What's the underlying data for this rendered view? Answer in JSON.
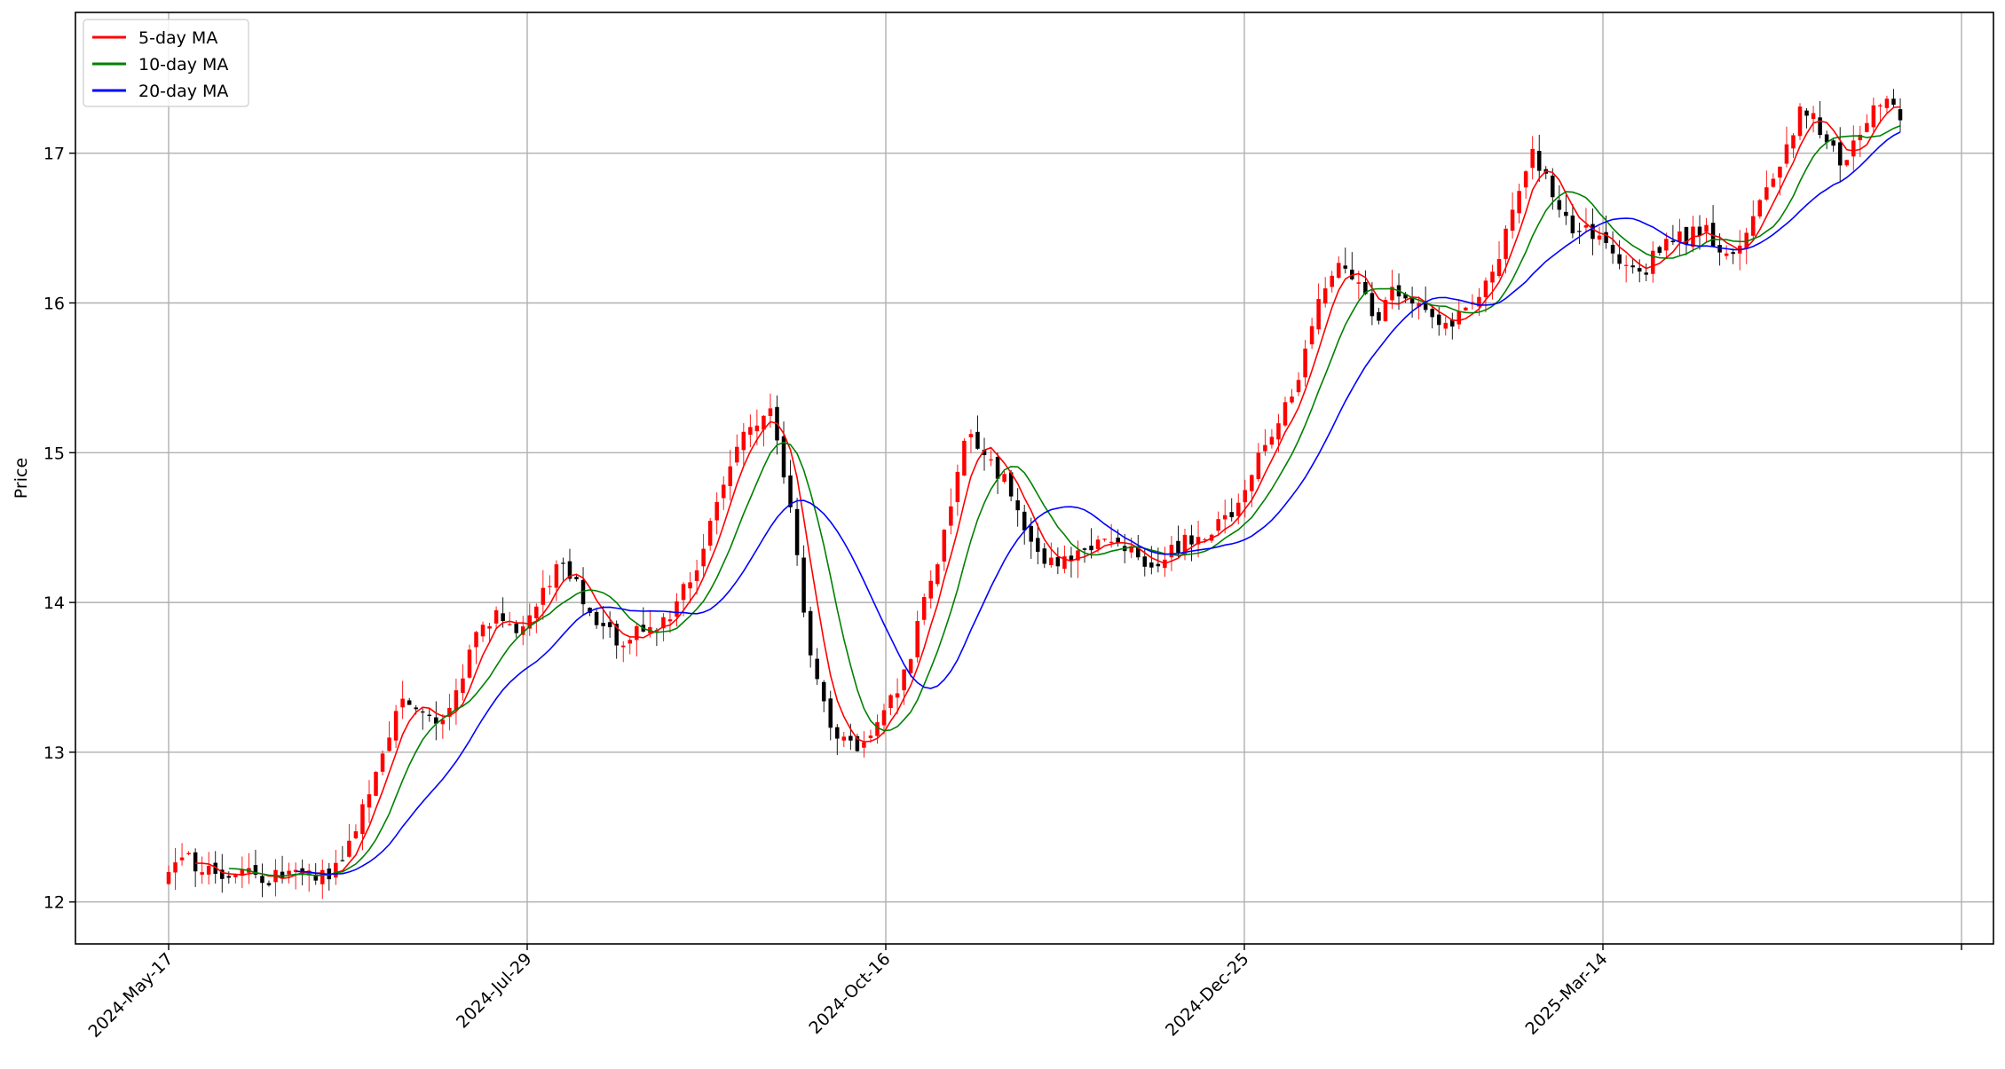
{
  "chart_data": {
    "type": "candlestick",
    "ylabel": "Price",
    "xlabel": "",
    "ylim": [
      11.72,
      17.94
    ],
    "yticks": [
      12,
      13,
      14,
      15,
      16,
      17
    ],
    "grid": true,
    "legend_placement": "top-left",
    "date_ticks": [
      "2024-May-17",
      "2024-Jul-29",
      "2024-Oct-16",
      "2024-Dec-25",
      "2025-Mar-14",
      ""
    ],
    "colors": {
      "up": "#ff0000",
      "down": "#000000",
      "grid": "#b0b0b0"
    },
    "series": [
      {
        "name": "5-day MA",
        "color": "#ff0000",
        "window": 5
      },
      {
        "name": "10-day MA",
        "color": "#008000",
        "window": 10
      },
      {
        "name": "20-day MA",
        "color": "#0000ff",
        "window": 20
      }
    ],
    "close_path": [
      12.2,
      12.28,
      12.22,
      12.15,
      12.2,
      12.17,
      12.18,
      12.25,
      12.15,
      12.28,
      12.65,
      13.05,
      13.3,
      13.25,
      13.2,
      13.45,
      13.85,
      13.9,
      13.8,
      14.0,
      14.25,
      14.1,
      13.9,
      13.75,
      13.8,
      13.85,
      13.95,
      14.2,
      14.6,
      15.0,
      15.2,
      15.3,
      14.6,
      13.6,
      13.2,
      13.05,
      13.05,
      13.3,
      13.6,
      14.1,
      14.5,
      15.2,
      15.0,
      14.8,
      14.5,
      14.3,
      14.25,
      14.35,
      14.45,
      14.4,
      14.25,
      14.3,
      14.4,
      14.45,
      14.5,
      14.7,
      14.95,
      15.2,
      15.5,
      16.0,
      16.3,
      16.2,
      15.9,
      16.1,
      16.0,
      15.9,
      15.85,
      16.0,
      16.2,
      16.6,
      17.0,
      16.8,
      16.5,
      16.5,
      16.35,
      16.2,
      16.25,
      16.4,
      16.45,
      16.5,
      16.3,
      16.4,
      16.7,
      17.0,
      17.35,
      17.1,
      16.95,
      17.15,
      17.35,
      17.4
    ],
    "n_candles": 260,
    "first_close": 12.2,
    "last_close": 17.22
  }
}
